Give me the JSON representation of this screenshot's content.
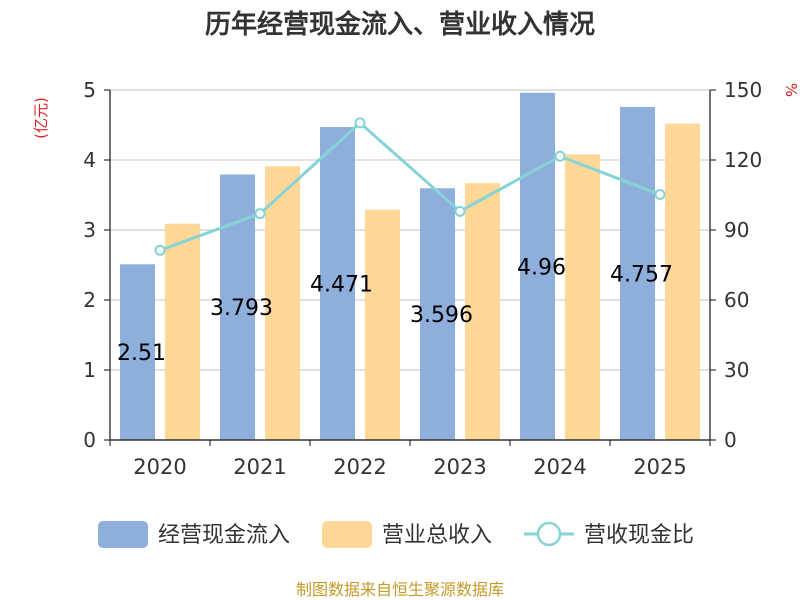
{
  "chart_data": {
    "type": "bar",
    "title": "历年经营现金流入、营业收入情况",
    "left_axis_unit": "(亿元)",
    "right_axis_unit": "%",
    "categories": [
      "2020",
      "2021",
      "2022",
      "2023",
      "2024",
      "2025"
    ],
    "ylim_left": [
      0,
      5
    ],
    "ylim_right": [
      0,
      150
    ],
    "left_ticks": [
      0,
      1,
      2,
      3,
      4,
      5
    ],
    "right_ticks": [
      0,
      30,
      60,
      90,
      120,
      150
    ],
    "grid": true,
    "legend_position": "bottom",
    "series": [
      {
        "name": "经营现金流入",
        "type": "bar",
        "axis": "left",
        "color": "#8eaedb",
        "values": [
          2.51,
          3.793,
          4.471,
          3.596,
          4.96,
          4.757
        ],
        "labels": [
          "2.51",
          "3.793",
          "4.471",
          "3.596",
          "4.96",
          "4.757"
        ]
      },
      {
        "name": "营业总收入",
        "type": "bar",
        "axis": "left",
        "color": "#ffd898",
        "values": [
          3.09,
          3.91,
          3.29,
          3.67,
          4.08,
          4.52
        ]
      },
      {
        "name": "营收现金比",
        "type": "line",
        "axis": "right",
        "color": "#86d3d6",
        "values": [
          81.3,
          97.0,
          135.9,
          98.0,
          121.6,
          105.2
        ]
      }
    ]
  },
  "source": "制图数据来自恒生聚源数据库"
}
